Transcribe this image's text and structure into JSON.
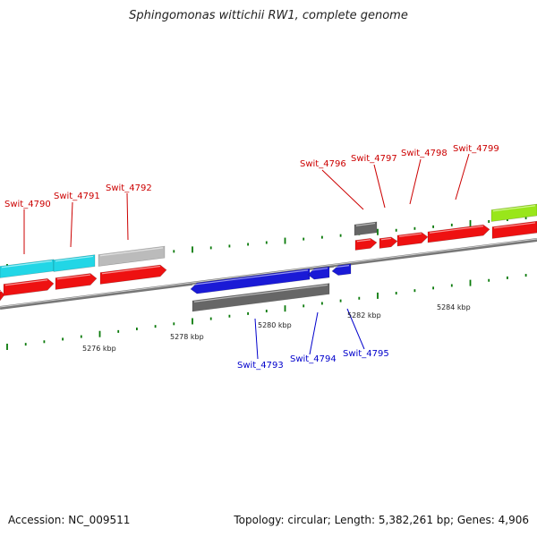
{
  "header": {
    "title": "Sphingomonas wittichii RW1, complete genome"
  },
  "footer": {
    "accession": "Accession: NC_009511",
    "summary": "Topology: circular; Length: 5,382,261 bp; Genes: 4,906"
  },
  "colors": {
    "cds_forward": "#ee1111",
    "cds_reverse": "#1a1ad6",
    "gene_cyan": "#22d6e6",
    "gene_gray_light": "#bbbbbb",
    "gene_gray_dark": "#666666",
    "gene_lime": "#99e61a",
    "backbone": "#888888",
    "tick": "#0a7a0a",
    "label_forward": "#cc0000",
    "label_reverse": "#0000cc"
  },
  "ruler": {
    "ticks": [
      "5276 kbp",
      "5278 kbp",
      "5280 kbp",
      "5282 kbp",
      "5284 kbp"
    ]
  },
  "forward_labels": [
    "Swit_4790",
    "Swit_4791",
    "Swit_4792",
    "Swit_4796",
    "Swit_4797",
    "Swit_4798",
    "Swit_4799"
  ],
  "reverse_labels": [
    "Swit_4793",
    "Swit_4794",
    "Swit_4795"
  ]
}
